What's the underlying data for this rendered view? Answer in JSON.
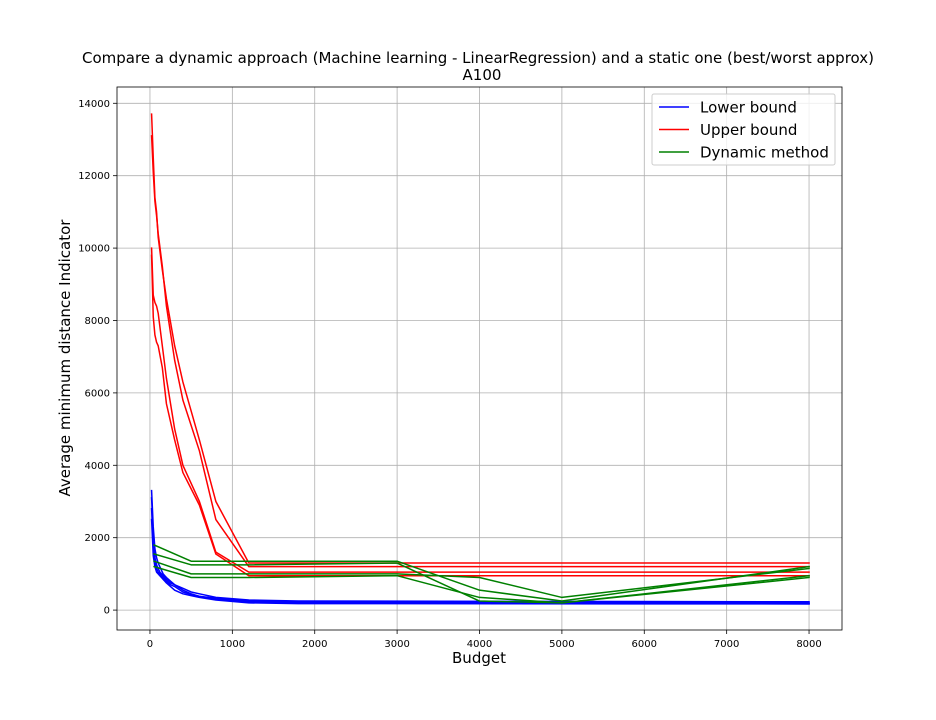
{
  "chart_data": {
    "type": "line",
    "title": "Compare a dynamic approach (Machine learning - LinearRegression) and a static one (best/worst approx)",
    "subtitle": "A100",
    "xlabel": "Budget",
    "ylabel": "Average minimum distance Indicator",
    "xlim": [
      -400,
      8400
    ],
    "ylim": [
      -550,
      14450
    ],
    "xticks": [
      0,
      1000,
      2000,
      3000,
      4000,
      5000,
      6000,
      7000,
      8000
    ],
    "yticks": [
      0,
      2000,
      4000,
      6000,
      8000,
      10000,
      12000,
      14000
    ],
    "grid": true,
    "legend_position": "top-right",
    "legend": [
      {
        "label": "Lower bound",
        "color": "#0000ff"
      },
      {
        "label": "Upper bound",
        "color": "#ff0000"
      },
      {
        "label": "Dynamic method",
        "color": "#008000"
      }
    ],
    "groups": [
      {
        "legend": "Lower bound",
        "color": "#0000ff",
        "series": [
          {
            "x": [
              20,
              40,
              60,
              80,
              100,
              120,
              140,
              160,
              180,
              200,
              250,
              300,
              400,
              500,
              600,
              800,
              1200,
              1800,
              8000
            ],
            "y": [
              3300,
              2300,
              1700,
              1450,
              1300,
              1200,
              1100,
              1000,
              950,
              900,
              800,
              700,
              600,
              500,
              450,
              350,
              280,
              250,
              230
            ]
          },
          {
            "x": [
              20,
              40,
              60,
              80,
              100,
              120,
              140,
              160,
              180,
              200,
              250,
              300,
              400,
              500,
              600,
              800,
              1200,
              1800,
              8000
            ],
            "y": [
              3100,
              2000,
              1450,
              1250,
              1150,
              1050,
              1000,
              950,
              900,
              850,
              750,
              700,
              550,
              450,
              380,
              300,
              230,
              200,
              180
            ]
          },
          {
            "x": [
              20,
              40,
              60,
              80,
              100,
              120,
              140,
              160,
              180,
              200,
              250,
              300,
              400,
              500,
              600,
              800,
              1200,
              1800,
              8000
            ],
            "y": [
              2800,
              1700,
              1300,
              1150,
              1050,
              1000,
              950,
              900,
              850,
              800,
              700,
              650,
              500,
              430,
              380,
              330,
              250,
              220,
              200
            ]
          },
          {
            "x": [
              20,
              40,
              60,
              80,
              100,
              120,
              140,
              160,
              180,
              200,
              250,
              300,
              400,
              500,
              600,
              800,
              1200,
              1800,
              8000
            ],
            "y": [
              2500,
              1500,
              1200,
              1050,
              1000,
              950,
              900,
              850,
              800,
              750,
              650,
              550,
              450,
              400,
              350,
              280,
              200,
              180,
              170
            ]
          }
        ]
      },
      {
        "legend": "Upper bound",
        "color": "#ff0000",
        "series": [
          {
            "x": [
              20,
              40,
              60,
              80,
              100,
              150,
              200,
              300,
              400,
              600,
              800,
              1200,
              8000
            ],
            "y": [
              13700,
              12500,
              11400,
              11000,
              10300,
              9400,
              8600,
              7300,
              6300,
              4700,
              3000,
              1300,
              1300
            ]
          },
          {
            "x": [
              20,
              40,
              60,
              80,
              100,
              150,
              200,
              300,
              400,
              600,
              800,
              1200,
              8000
            ],
            "y": [
              13100,
              12100,
              11300,
              10900,
              10400,
              9500,
              8400,
              6900,
              5800,
              4400,
              2500,
              1200,
              1200
            ]
          },
          {
            "x": [
              20,
              40,
              60,
              80,
              100,
              150,
              200,
              300,
              400,
              600,
              800,
              1200,
              8000
            ],
            "y": [
              10000,
              8700,
              8500,
              8400,
              8200,
              7300,
              6400,
              5000,
              4000,
              3000,
              1600,
              1050,
              1050
            ]
          },
          {
            "x": [
              20,
              40,
              60,
              80,
              100,
              150,
              200,
              300,
              400,
              600,
              800,
              1200,
              8000
            ],
            "y": [
              9800,
              8100,
              7600,
              7400,
              7300,
              6700,
              5700,
              4700,
              3800,
              2900,
              1550,
              950,
              950
            ]
          }
        ]
      },
      {
        "legend": "Dynamic method",
        "color": "#008000",
        "series": [
          {
            "x": [
              50,
              500,
              1200,
              3000,
              4000,
              5000,
              8000
            ],
            "y": [
              1800,
              1350,
              1350,
              1350,
              550,
              250,
              1200
            ]
          },
          {
            "x": [
              50,
              500,
              1200,
              3000,
              4000,
              5000,
              8000
            ],
            "y": [
              1550,
              1250,
              1250,
              1300,
              250,
              200,
              950
            ]
          },
          {
            "x": [
              50,
              500,
              1200,
              3000,
              4000,
              5000,
              8000
            ],
            "y": [
              1350,
              1000,
              1000,
              1000,
              900,
              350,
              1150
            ]
          },
          {
            "x": [
              50,
              500,
              1200,
              3000,
              4000,
              5000,
              8000
            ],
            "y": [
              1200,
              900,
              900,
              950,
              350,
              200,
              900
            ]
          }
        ]
      }
    ]
  }
}
